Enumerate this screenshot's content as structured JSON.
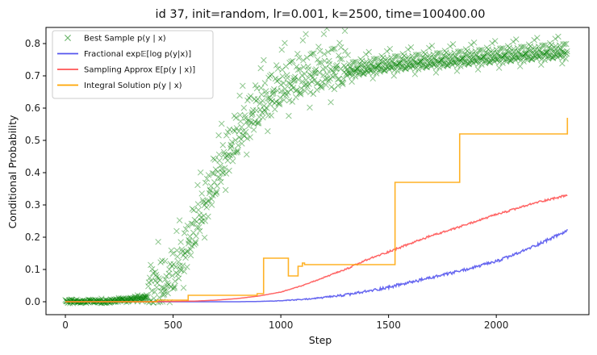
{
  "chart_data": {
    "type": "line",
    "title": "id 37, init=random, lr=0.001, k=2500, time=100400.00",
    "xlabel": "Step",
    "ylabel": "Conditional Probability",
    "xlim": [
      -90,
      2430
    ],
    "ylim": [
      -0.04,
      0.85
    ],
    "xticks": [
      0,
      500,
      1000,
      1500,
      2000
    ],
    "yticks": [
      0.0,
      0.1,
      0.2,
      0.3,
      0.4,
      0.5,
      0.6,
      0.7,
      0.8
    ],
    "xtick_labels": [
      "0",
      "500",
      "1000",
      "1500",
      "2000"
    ],
    "ytick_labels": [
      "0.0",
      "0.1",
      "0.2",
      "0.3",
      "0.4",
      "0.5",
      "0.6",
      "0.7",
      "0.8"
    ],
    "grid": false,
    "legend_position": "top-left",
    "series": [
      {
        "name": "Best Sample p(y | x)",
        "kind": "scatter",
        "marker": "x",
        "color": "#008000",
        "trend": {
          "x": [
            0,
            200,
            300,
            350,
            400,
            450,
            500,
            550,
            600,
            650,
            700,
            750,
            800,
            850,
            900,
            950,
            1000,
            1100,
            1200,
            1300,
            1400,
            1500,
            1600,
            1700,
            1800,
            1900,
            2000,
            2100,
            2200,
            2330
          ],
          "y": [
            0.0,
            0.0,
            0.005,
            0.01,
            0.02,
            0.035,
            0.07,
            0.13,
            0.21,
            0.29,
            0.37,
            0.44,
            0.5,
            0.55,
            0.59,
            0.62,
            0.65,
            0.68,
            0.7,
            0.71,
            0.72,
            0.73,
            0.735,
            0.74,
            0.745,
            0.75,
            0.755,
            0.76,
            0.765,
            0.77
          ]
        }
      },
      {
        "name": "Fractional exp𝔼[log p(y|x)]",
        "kind": "line",
        "color": "#5555ee",
        "x": [
          0,
          600,
          800,
          900,
          1000,
          1100,
          1200,
          1300,
          1400,
          1500,
          1600,
          1700,
          1800,
          1900,
          2000,
          2100,
          2200,
          2330
        ],
        "y": [
          0.0,
          0.0,
          0.0,
          0.001,
          0.003,
          0.007,
          0.013,
          0.021,
          0.032,
          0.045,
          0.06,
          0.075,
          0.09,
          0.107,
          0.125,
          0.15,
          0.18,
          0.22
        ]
      },
      {
        "name": "Sampling Approx E[p(y | x)]",
        "kind": "line",
        "color": "#ff5555",
        "x": [
          0,
          400,
          500,
          600,
          700,
          800,
          900,
          1000,
          1100,
          1200,
          1300,
          1400,
          1500,
          1600,
          1700,
          1800,
          1900,
          2000,
          2100,
          2200,
          2330
        ],
        "y": [
          0.0,
          0.0,
          0.001,
          0.002,
          0.005,
          0.01,
          0.018,
          0.03,
          0.05,
          0.075,
          0.1,
          0.13,
          0.155,
          0.18,
          0.205,
          0.225,
          0.248,
          0.27,
          0.29,
          0.31,
          0.33
        ]
      },
      {
        "name": "Integral Solution p(y | x)",
        "kind": "step",
        "color": "#ffa500",
        "x": [
          0,
          425,
          570,
          890,
          920,
          1035,
          1080,
          1100,
          1110,
          1530,
          1745,
          1830,
          2330
        ],
        "y": [
          0.0,
          0.005,
          0.02,
          0.025,
          0.135,
          0.08,
          0.11,
          0.12,
          0.115,
          0.37,
          0.37,
          0.52,
          0.57
        ]
      }
    ]
  }
}
